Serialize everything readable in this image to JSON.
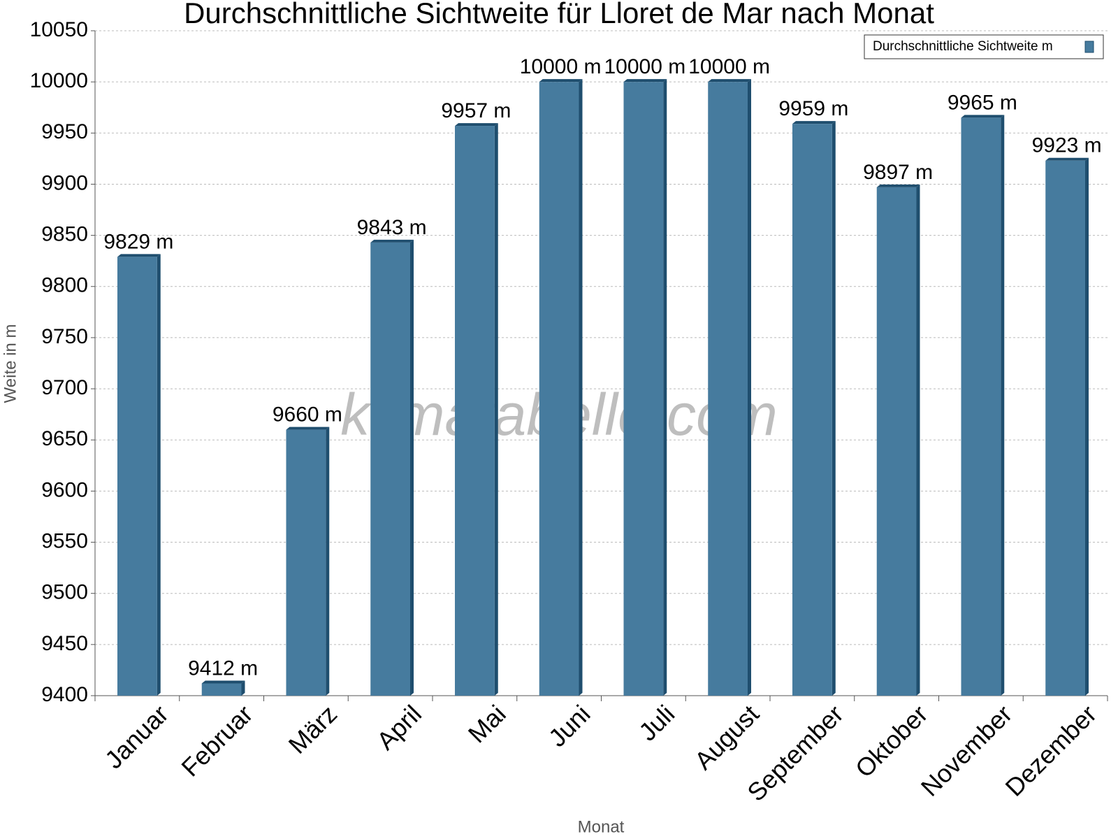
{
  "chart_data": {
    "type": "bar",
    "title": "Durchschnittliche Sichtweite für Lloret de Mar nach Monat",
    "x_label": "Monat",
    "y_label": "Weite in m",
    "annotation": "klimatabelle.com",
    "categories": [
      "Januar",
      "Februar",
      "März",
      "April",
      "Mai",
      "Juni",
      "Juli",
      "August",
      "September",
      "Oktober",
      "November",
      "Dezember"
    ],
    "series": [
      {
        "name": "Durchschnittliche Sichtweite m",
        "color": "#467b9e",
        "values": [
          9829,
          9412,
          9660,
          9843,
          9957,
          10000,
          10000,
          10000,
          9959,
          9897,
          9965,
          9923
        ],
        "value_labels": [
          "9829 m",
          "9412 m",
          "9660 m",
          "9843 m",
          "9957 m",
          "10000 m",
          "10000 m",
          "10000 m",
          "9959 m",
          "9897 m",
          "9965 m",
          "9923 m"
        ]
      }
    ],
    "ylim": [
      9400,
      10050
    ],
    "yticks": [
      9400,
      9450,
      9500,
      9550,
      9600,
      9650,
      9700,
      9750,
      9800,
      9850,
      9900,
      9950,
      10000,
      10050
    ],
    "grid": true,
    "legend": "top-right"
  }
}
